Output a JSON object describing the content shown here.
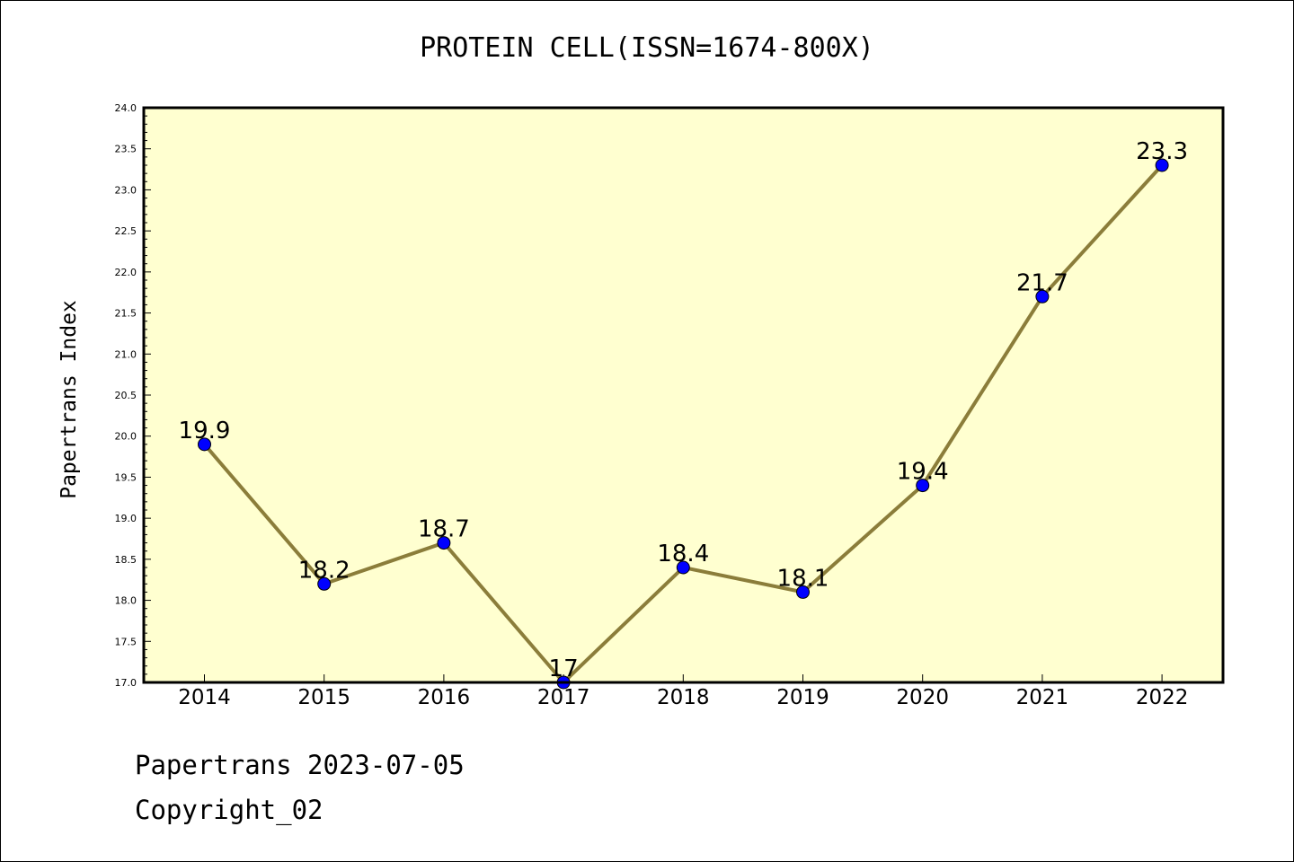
{
  "chart_data": {
    "type": "line",
    "title": "PROTEIN CELL(ISSN=1674-800X)",
    "xlabel": "",
    "ylabel": "Papertrans Index",
    "categories": [
      "2014",
      "2015",
      "2016",
      "2017",
      "2018",
      "2019",
      "2020",
      "2021",
      "2022"
    ],
    "series": [
      {
        "values": [
          19.9,
          18.2,
          18.7,
          17.0,
          18.4,
          18.1,
          19.4,
          21.7,
          23.3
        ],
        "data_labels": [
          "19.9",
          "18.2",
          "18.7",
          "17",
          "18.4",
          "18.1",
          "19.4",
          "21.7",
          "23.3"
        ]
      }
    ],
    "ylim": [
      17.0,
      24.0
    ],
    "yticks": [
      "17.0",
      "17.5",
      "18.0",
      "18.5",
      "19.0",
      "19.5",
      "20.0",
      "20.5",
      "21.0",
      "21.5",
      "22.0",
      "22.5",
      "23.0",
      "23.5",
      "24.0"
    ],
    "grid": false,
    "legend": "none",
    "colors": {
      "plot_background": "#ffffd0",
      "line": "#8b7d3a",
      "marker": "#0000ff",
      "marker_edge": "#000000"
    }
  },
  "footer": {
    "line1": "Papertrans 2023-07-05",
    "line2": "Copyright_02"
  }
}
